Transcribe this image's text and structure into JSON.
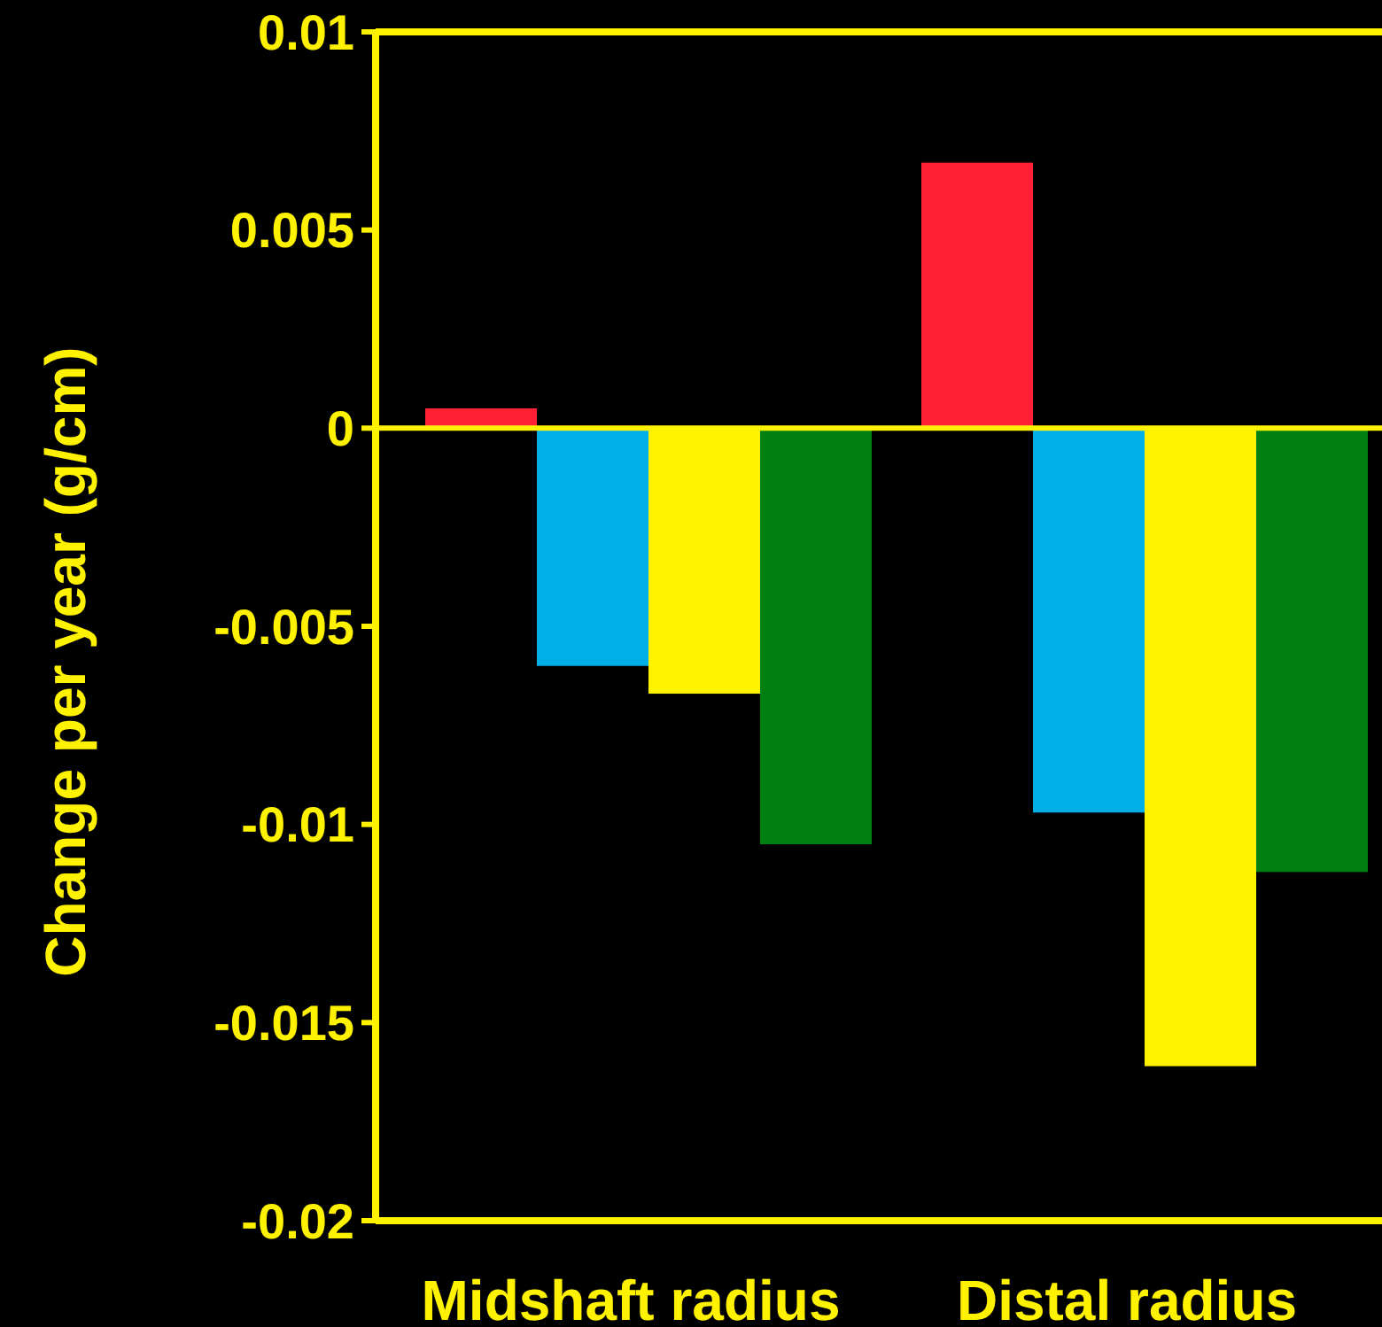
{
  "chart_data": {
    "type": "bar",
    "ylabel": "Change per year (g/cm)",
    "categories": [
      "Midshaft radius",
      "Distal radius"
    ],
    "series": [
      {
        "color": "#ff2033",
        "values": [
          0.0005,
          0.0067
        ]
      },
      {
        "color": "#00aee8",
        "values": [
          -0.006,
          -0.0097
        ]
      },
      {
        "color": "#fff200",
        "values": [
          -0.0067,
          -0.0161
        ]
      },
      {
        "color": "#008010",
        "values": [
          -0.0105,
          -0.0112
        ]
      }
    ],
    "ylim": [
      -0.02,
      0.01
    ],
    "yticks": [
      -0.02,
      -0.015,
      -0.01,
      -0.005,
      0,
      0.005,
      0.01
    ],
    "grid": false,
    "ref_lines": [
      {
        "axis": "y",
        "value": 0,
        "color": "#fff200"
      }
    ]
  }
}
